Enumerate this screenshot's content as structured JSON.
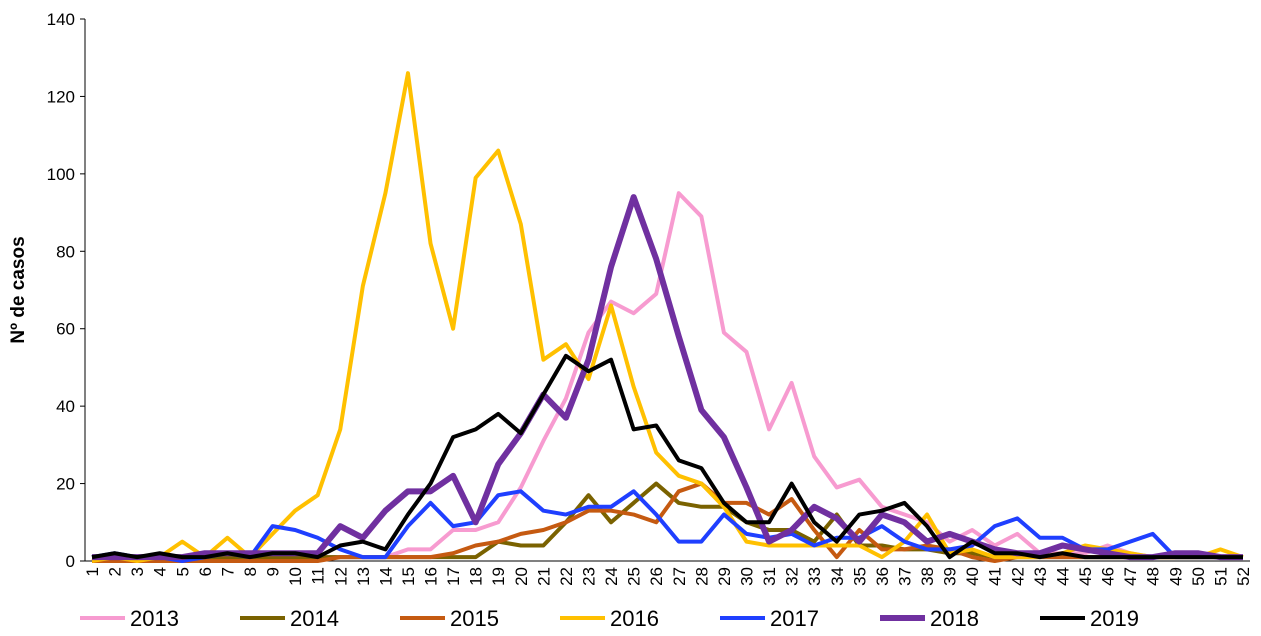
{
  "chart_data": {
    "type": "line",
    "y_label": "Nº de casos",
    "categories": [
      "1",
      "2",
      "3",
      "4",
      "5",
      "6",
      "7",
      "8",
      "9",
      "10",
      "11",
      "12",
      "13",
      "14",
      "15",
      "16",
      "17",
      "18",
      "19",
      "20",
      "21",
      "22",
      "23",
      "24",
      "25",
      "26",
      "27",
      "28",
      "29",
      "30",
      "31",
      "32",
      "33",
      "34",
      "35",
      "36",
      "37",
      "38",
      "39",
      "40",
      "41",
      "42",
      "43",
      "44",
      "45",
      "46",
      "47",
      "48",
      "49",
      "50",
      "51",
      "52"
    ],
    "ylim": [
      0,
      140
    ],
    "yticks": [
      0,
      20,
      40,
      60,
      80,
      100,
      120,
      140
    ],
    "series": [
      {
        "name": "2013",
        "color": "#f79bd0",
        "values": [
          1,
          1,
          1,
          1,
          1,
          1,
          1,
          1,
          1,
          1,
          1,
          1,
          1,
          1,
          3,
          3,
          8,
          8,
          10,
          19,
          31,
          42,
          59,
          67,
          64,
          69,
          95,
          89,
          59,
          54,
          34,
          46,
          27,
          19,
          21,
          14,
          12,
          10,
          5,
          8,
          4,
          7,
          2,
          2,
          2,
          4,
          2,
          1,
          1,
          1,
          1,
          1
        ]
      },
      {
        "name": "2014",
        "color": "#7a6200",
        "values": [
          1,
          1,
          1,
          1,
          1,
          1,
          1,
          1,
          1,
          1,
          1,
          1,
          1,
          1,
          1,
          1,
          1,
          1,
          5,
          4,
          4,
          10,
          17,
          10,
          15,
          20,
          15,
          14,
          14,
          10,
          8,
          8,
          5,
          12,
          4,
          4,
          3,
          3,
          2,
          2,
          1,
          1,
          1,
          1,
          1,
          1,
          1,
          1,
          1,
          1,
          1,
          1
        ]
      },
      {
        "name": "2015",
        "color": "#c55a11",
        "values": [
          0,
          0,
          0,
          0,
          0,
          0,
          0,
          0,
          0,
          0,
          0,
          1,
          1,
          1,
          1,
          1,
          2,
          4,
          5,
          7,
          8,
          10,
          13,
          13,
          12,
          10,
          18,
          20,
          15,
          15,
          12,
          16,
          8,
          1,
          8,
          3,
          3,
          4,
          3,
          1,
          0,
          1,
          1,
          1,
          1,
          1,
          1,
          1,
          1,
          1,
          1,
          1
        ]
      },
      {
        "name": "2016",
        "color": "#ffc000",
        "values": [
          0,
          1,
          0,
          1,
          5,
          1,
          6,
          1,
          7,
          13,
          17,
          34,
          71,
          95,
          126,
          82,
          60,
          99,
          106,
          87,
          52,
          56,
          47,
          66,
          45,
          28,
          22,
          20,
          14,
          5,
          4,
          4,
          4,
          4,
          4,
          1,
          5,
          12,
          2,
          3,
          1,
          1,
          1,
          2,
          4,
          3,
          2,
          1,
          1,
          1,
          3,
          1
        ]
      },
      {
        "name": "2017",
        "color": "#1f3fff",
        "values": [
          1,
          2,
          1,
          1,
          0,
          1,
          2,
          1,
          9,
          8,
          6,
          3,
          1,
          1,
          9,
          15,
          9,
          10,
          17,
          18,
          13,
          12,
          14,
          14,
          18,
          12,
          5,
          5,
          12,
          7,
          6,
          7,
          4,
          6,
          6,
          9,
          5,
          3,
          3,
          4,
          9,
          11,
          6,
          6,
          3,
          3,
          5,
          7,
          1,
          1,
          1,
          1
        ]
      },
      {
        "name": "2018",
        "color": "#7030a0",
        "values": [
          1,
          1,
          1,
          1,
          1,
          2,
          2,
          2,
          2,
          2,
          2,
          9,
          6,
          13,
          18,
          18,
          22,
          10,
          25,
          33,
          43,
          37,
          52,
          76,
          94,
          78,
          58,
          39,
          32,
          19,
          5,
          8,
          14,
          11,
          5,
          12,
          10,
          5,
          7,
          5,
          3,
          2,
          2,
          4,
          3,
          2,
          1,
          1,
          2,
          2,
          1,
          1
        ]
      },
      {
        "name": "2019",
        "color": "#000000",
        "values": [
          1,
          2,
          1,
          2,
          1,
          1,
          2,
          1,
          2,
          2,
          1,
          4,
          5,
          3,
          12,
          20,
          32,
          34,
          38,
          33,
          43,
          53,
          49,
          52,
          34,
          35,
          26,
          24,
          15,
          10,
          10,
          20,
          10,
          5,
          12,
          13,
          15,
          9,
          1,
          5,
          2,
          2,
          1,
          2,
          1,
          1,
          1,
          1,
          1,
          1,
          1,
          1
        ]
      }
    ]
  }
}
